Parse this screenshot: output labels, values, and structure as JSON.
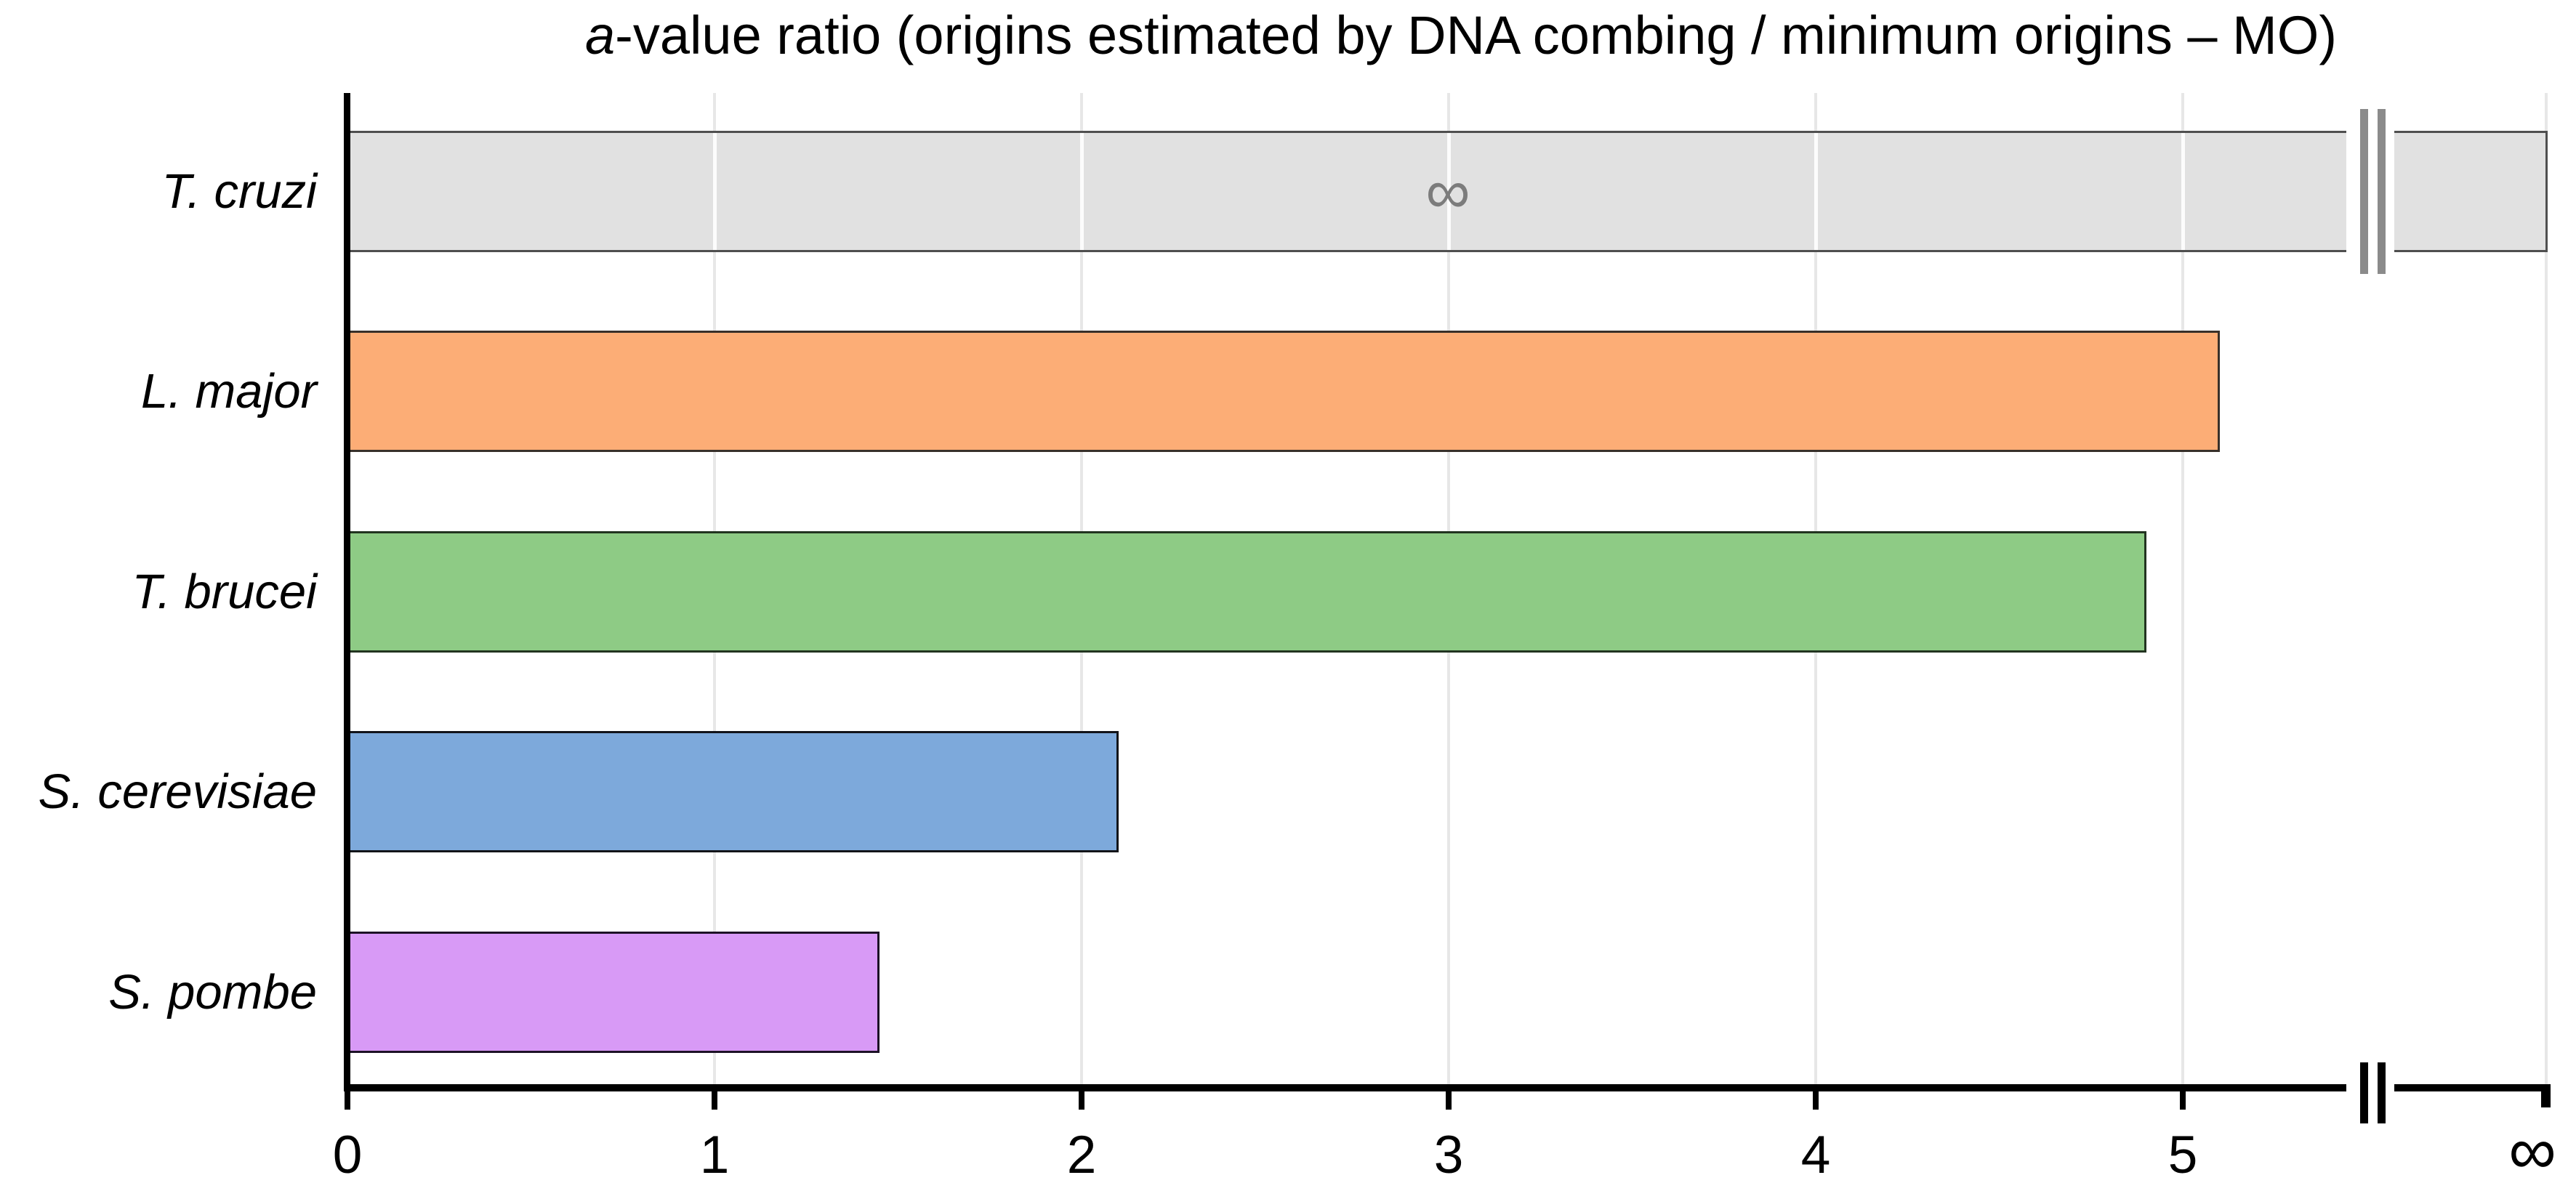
{
  "title": {
    "italic_prefix": "a",
    "rest": "-value ratio (origins estimated by DNA combing / minimum origins – MO)"
  },
  "chart_data": {
    "type": "bar",
    "orientation": "horizontal",
    "title": "a-value ratio (origins estimated by DNA combing / minimum origins – MO)",
    "categories": [
      "T. cruzi",
      "L. major",
      "T. brucei",
      "S. cerevisiae",
      "S. pombe"
    ],
    "values": [
      null,
      5.1,
      4.9,
      2.1,
      1.45
    ],
    "infinite_bar": {
      "category": "T. cruzi",
      "annotation": "∞",
      "has_break_marks": true
    },
    "bar_colors": [
      "#e1e1e1",
      "#fcad76",
      "#8ecb85",
      "#7da9db",
      "#d89af6"
    ],
    "bar_border_colors": [
      "#4f4f4f",
      "#38302a",
      "#223420",
      "#121419",
      "#1d1226"
    ],
    "x_axis": {
      "min": 0,
      "tick_labels": [
        "0",
        "1",
        "2",
        "3",
        "4",
        "5"
      ],
      "infinity_label": "∞",
      "axis_break_between": [
        "5",
        "∞"
      ],
      "grid": true
    },
    "ylabel": "",
    "xlabel": "",
    "legend": null
  },
  "colors": {
    "background": "#ffffff",
    "grid": "#e7e7e7",
    "axis": "#000000",
    "bar_break_mark": "#8b8b8b",
    "inbar_infinity_text": "#7c7c7c",
    "text": "#000000"
  }
}
